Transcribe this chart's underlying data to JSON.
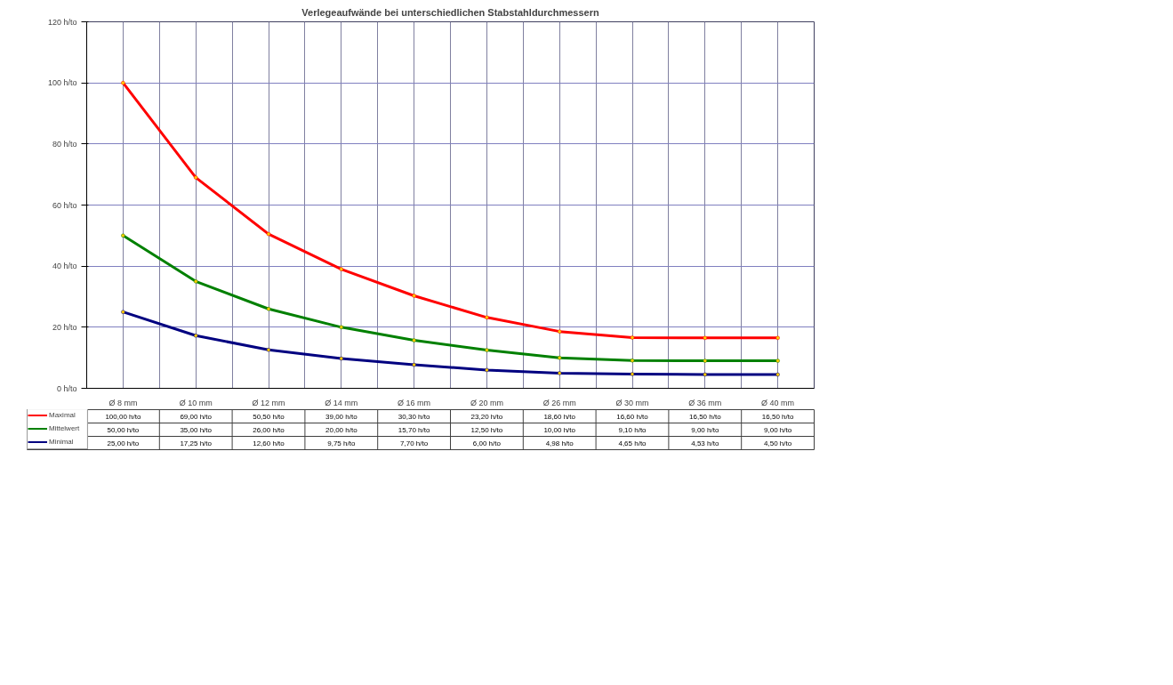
{
  "chart_data": {
    "type": "line",
    "title": "Verlegeaufwände bei unterschiedlichen Stabstahldurchmessern",
    "categories": [
      "Ø 8 mm",
      "Ø 10 mm",
      "Ø 12 mm",
      "Ø 14 mm",
      "Ø 16 mm",
      "Ø 20 mm",
      "Ø 26 mm",
      "Ø 30 mm",
      "Ø 36 mm",
      "Ø 40 mm"
    ],
    "series": [
      {
        "name": "Maximal",
        "color": "#ff0000",
        "values": [
          100,
          69,
          50.5,
          39,
          30.3,
          23.2,
          18.6,
          16.6,
          16.5,
          16.5
        ],
        "value_labels": [
          "100,00 h/to",
          "69,00 h/to",
          "50,50 h/to",
          "39,00 h/to",
          "30,30 h/to",
          "23,20 h/to",
          "18,60 h/to",
          "16,60 h/to",
          "16,50 h/to",
          "16,50 h/to"
        ]
      },
      {
        "name": "Mittelwert",
        "color": "#008000",
        "values": [
          50,
          35,
          26,
          20,
          15.7,
          12.5,
          10,
          9.1,
          9,
          9
        ],
        "value_labels": [
          "50,00 h/to",
          "35,00 h/to",
          "26,00 h/to",
          "20,00 h/to",
          "15,70 h/to",
          "12,50 h/to",
          "10,00 h/to",
          "9,10 h/to",
          "9,00 h/to",
          "9,00 h/to"
        ]
      },
      {
        "name": "Minimal",
        "color": "#000080",
        "values": [
          25,
          17.25,
          12.6,
          9.75,
          7.7,
          6,
          4.98,
          4.65,
          4.53,
          4.5
        ],
        "value_labels": [
          "25,00 h/to",
          "17,25 h/to",
          "12,60 h/to",
          "9,75 h/to",
          "7,70 h/to",
          "6,00 h/to",
          "4,98 h/to",
          "4,65 h/to",
          "4,53 h/to",
          "4,50 h/to"
        ]
      }
    ],
    "ylim": [
      0,
      120
    ],
    "yticks": [
      {
        "value": 0,
        "label": "0 h/to"
      },
      {
        "value": 20,
        "label": "20 h/to"
      },
      {
        "value": 40,
        "label": "40 h/to"
      },
      {
        "value": 60,
        "label": "60 h/to"
      },
      {
        "value": 80,
        "label": "80 h/to"
      },
      {
        "value": 100,
        "label": "100 h/to"
      },
      {
        "value": 120,
        "label": "120 h/to"
      }
    ],
    "grid": true,
    "legend": "bottom",
    "marker": "circle",
    "line_style": "solid"
  }
}
